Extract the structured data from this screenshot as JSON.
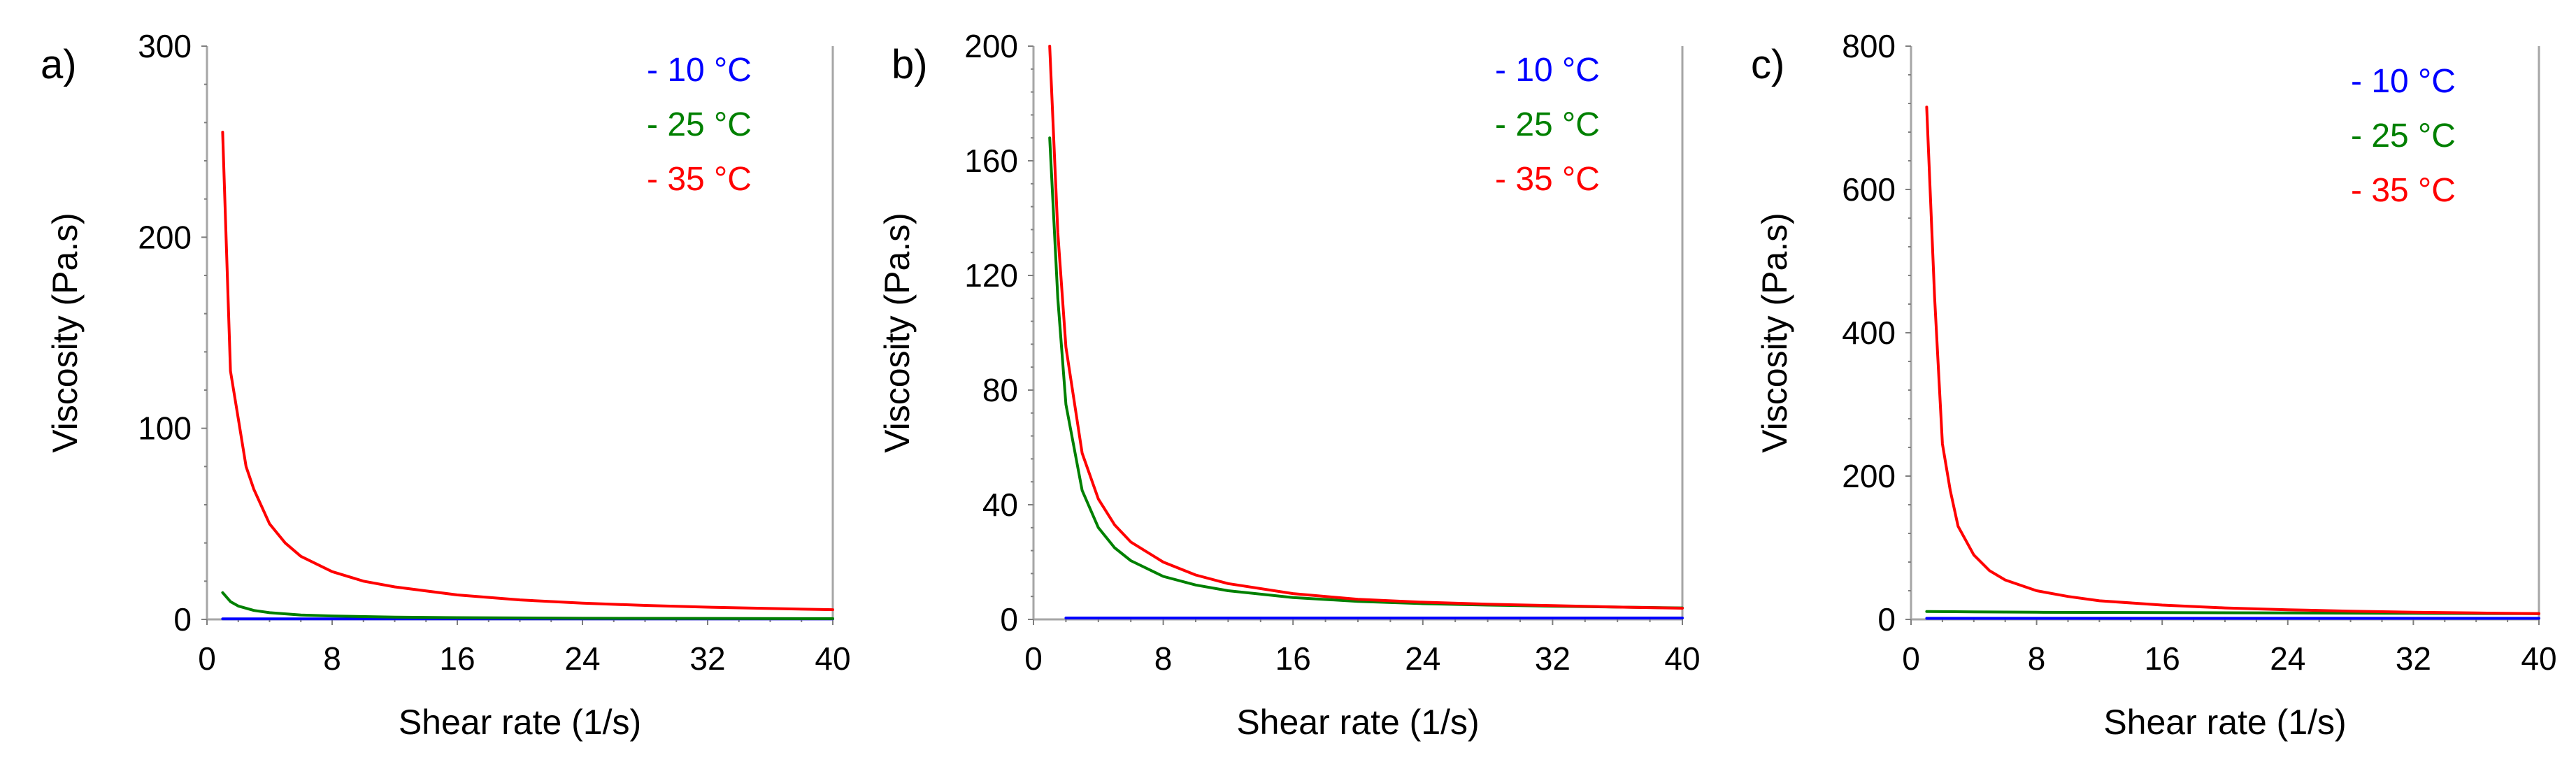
{
  "chart_data": [
    {
      "type": "line",
      "panel_label": "a)",
      "xlabel": "Shear rate  (1/s)",
      "ylabel": "Viscosity  (Pa.s)",
      "xlim": [
        0,
        40
      ],
      "ylim": [
        0,
        300
      ],
      "xticks": [
        0,
        8,
        16,
        24,
        32,
        40
      ],
      "yticks": [
        0,
        100,
        200,
        300
      ],
      "legend_position": "top-right",
      "series": [
        {
          "name": "- 10 °C",
          "color": "#0000ff",
          "x": [
            1,
            40
          ],
          "y": [
            0.3,
            0.3
          ]
        },
        {
          "name": "- 25 °C",
          "color": "#008000",
          "x": [
            1,
            1.5,
            2,
            3,
            4,
            6,
            8,
            12,
            16,
            24,
            32,
            40
          ],
          "y": [
            14,
            9.3,
            7,
            4.7,
            3.5,
            2.3,
            1.8,
            1.2,
            0.9,
            0.6,
            0.5,
            0.4
          ]
        },
        {
          "name": "- 35 °C",
          "color": "#ff0000",
          "x": [
            1,
            1.5,
            2,
            2.5,
            3,
            4,
            5,
            6,
            8,
            10,
            12,
            16,
            20,
            24,
            28,
            32,
            36,
            40
          ],
          "y": [
            255,
            130,
            105,
            80,
            68,
            50,
            40,
            33,
            25,
            20,
            17,
            12.8,
            10.2,
            8.5,
            7.3,
            6.4,
            5.7,
            5.1
          ]
        }
      ]
    },
    {
      "type": "line",
      "panel_label": "b)",
      "xlabel": "Shear rate  (1/s)",
      "ylabel": "Viscosity  (Pa.s)",
      "xlim": [
        0,
        40
      ],
      "ylim": [
        0,
        200
      ],
      "xticks": [
        0,
        8,
        16,
        24,
        32,
        40
      ],
      "yticks": [
        0,
        40,
        80,
        120,
        160,
        200
      ],
      "legend_position": "top-right",
      "series": [
        {
          "name": "- 10 °C",
          "color": "#0000ff",
          "x": [
            2,
            40
          ],
          "y": [
            0.5,
            0.5
          ]
        },
        {
          "name": "- 25 °C",
          "color": "#008000",
          "x": [
            1,
            1.5,
            2,
            3,
            4,
            5,
            6,
            8,
            10,
            12,
            16,
            20,
            24,
            28,
            32,
            36,
            40
          ],
          "y": [
            168,
            112,
            75,
            45,
            32,
            25,
            20.5,
            15,
            12,
            10,
            7.6,
            6.3,
            5.5,
            5,
            4.6,
            4.3,
            4
          ]
        },
        {
          "name": "- 35 °C",
          "color": "#ff0000",
          "x": [
            1,
            1.5,
            2,
            3,
            4,
            5,
            6,
            8,
            10,
            12,
            16,
            20,
            24,
            28,
            32,
            36,
            40
          ],
          "y": [
            200,
            135,
            95,
            58,
            42,
            33,
            27,
            20,
            15.5,
            12.5,
            9,
            7,
            6,
            5.3,
            4.8,
            4.3,
            3.9
          ]
        }
      ]
    },
    {
      "type": "line",
      "panel_label": "c)",
      "xlabel": "Shear rate  (1/s)",
      "ylabel": "Viscosity  (Pa.s)",
      "xlim": [
        0,
        40
      ],
      "ylim": [
        0,
        800
      ],
      "xticks": [
        0,
        8,
        16,
        24,
        32,
        40
      ],
      "yticks": [
        0,
        200,
        400,
        600,
        800
      ],
      "legend_position": "top-right",
      "series": [
        {
          "name": "- 10 °C",
          "color": "#0000ff",
          "x": [
            1,
            40
          ],
          "y": [
            1.5,
            1.5
          ]
        },
        {
          "name": "- 25 °C",
          "color": "#008000",
          "x": [
            1,
            4,
            8,
            16,
            24,
            32,
            40
          ],
          "y": [
            11,
            10.5,
            10,
            9.5,
            9,
            8.5,
            8
          ]
        },
        {
          "name": "- 35 °C",
          "color": "#ff0000",
          "x": [
            1,
            1.5,
            2,
            2.5,
            3,
            4,
            5,
            6,
            8,
            10,
            12,
            16,
            20,
            24,
            28,
            32,
            36,
            40
          ],
          "y": [
            715,
            450,
            245,
            180,
            130,
            90,
            68,
            55,
            40,
            32,
            26,
            20,
            16,
            13.5,
            11.5,
            10,
            9,
            8
          ]
        }
      ]
    }
  ]
}
